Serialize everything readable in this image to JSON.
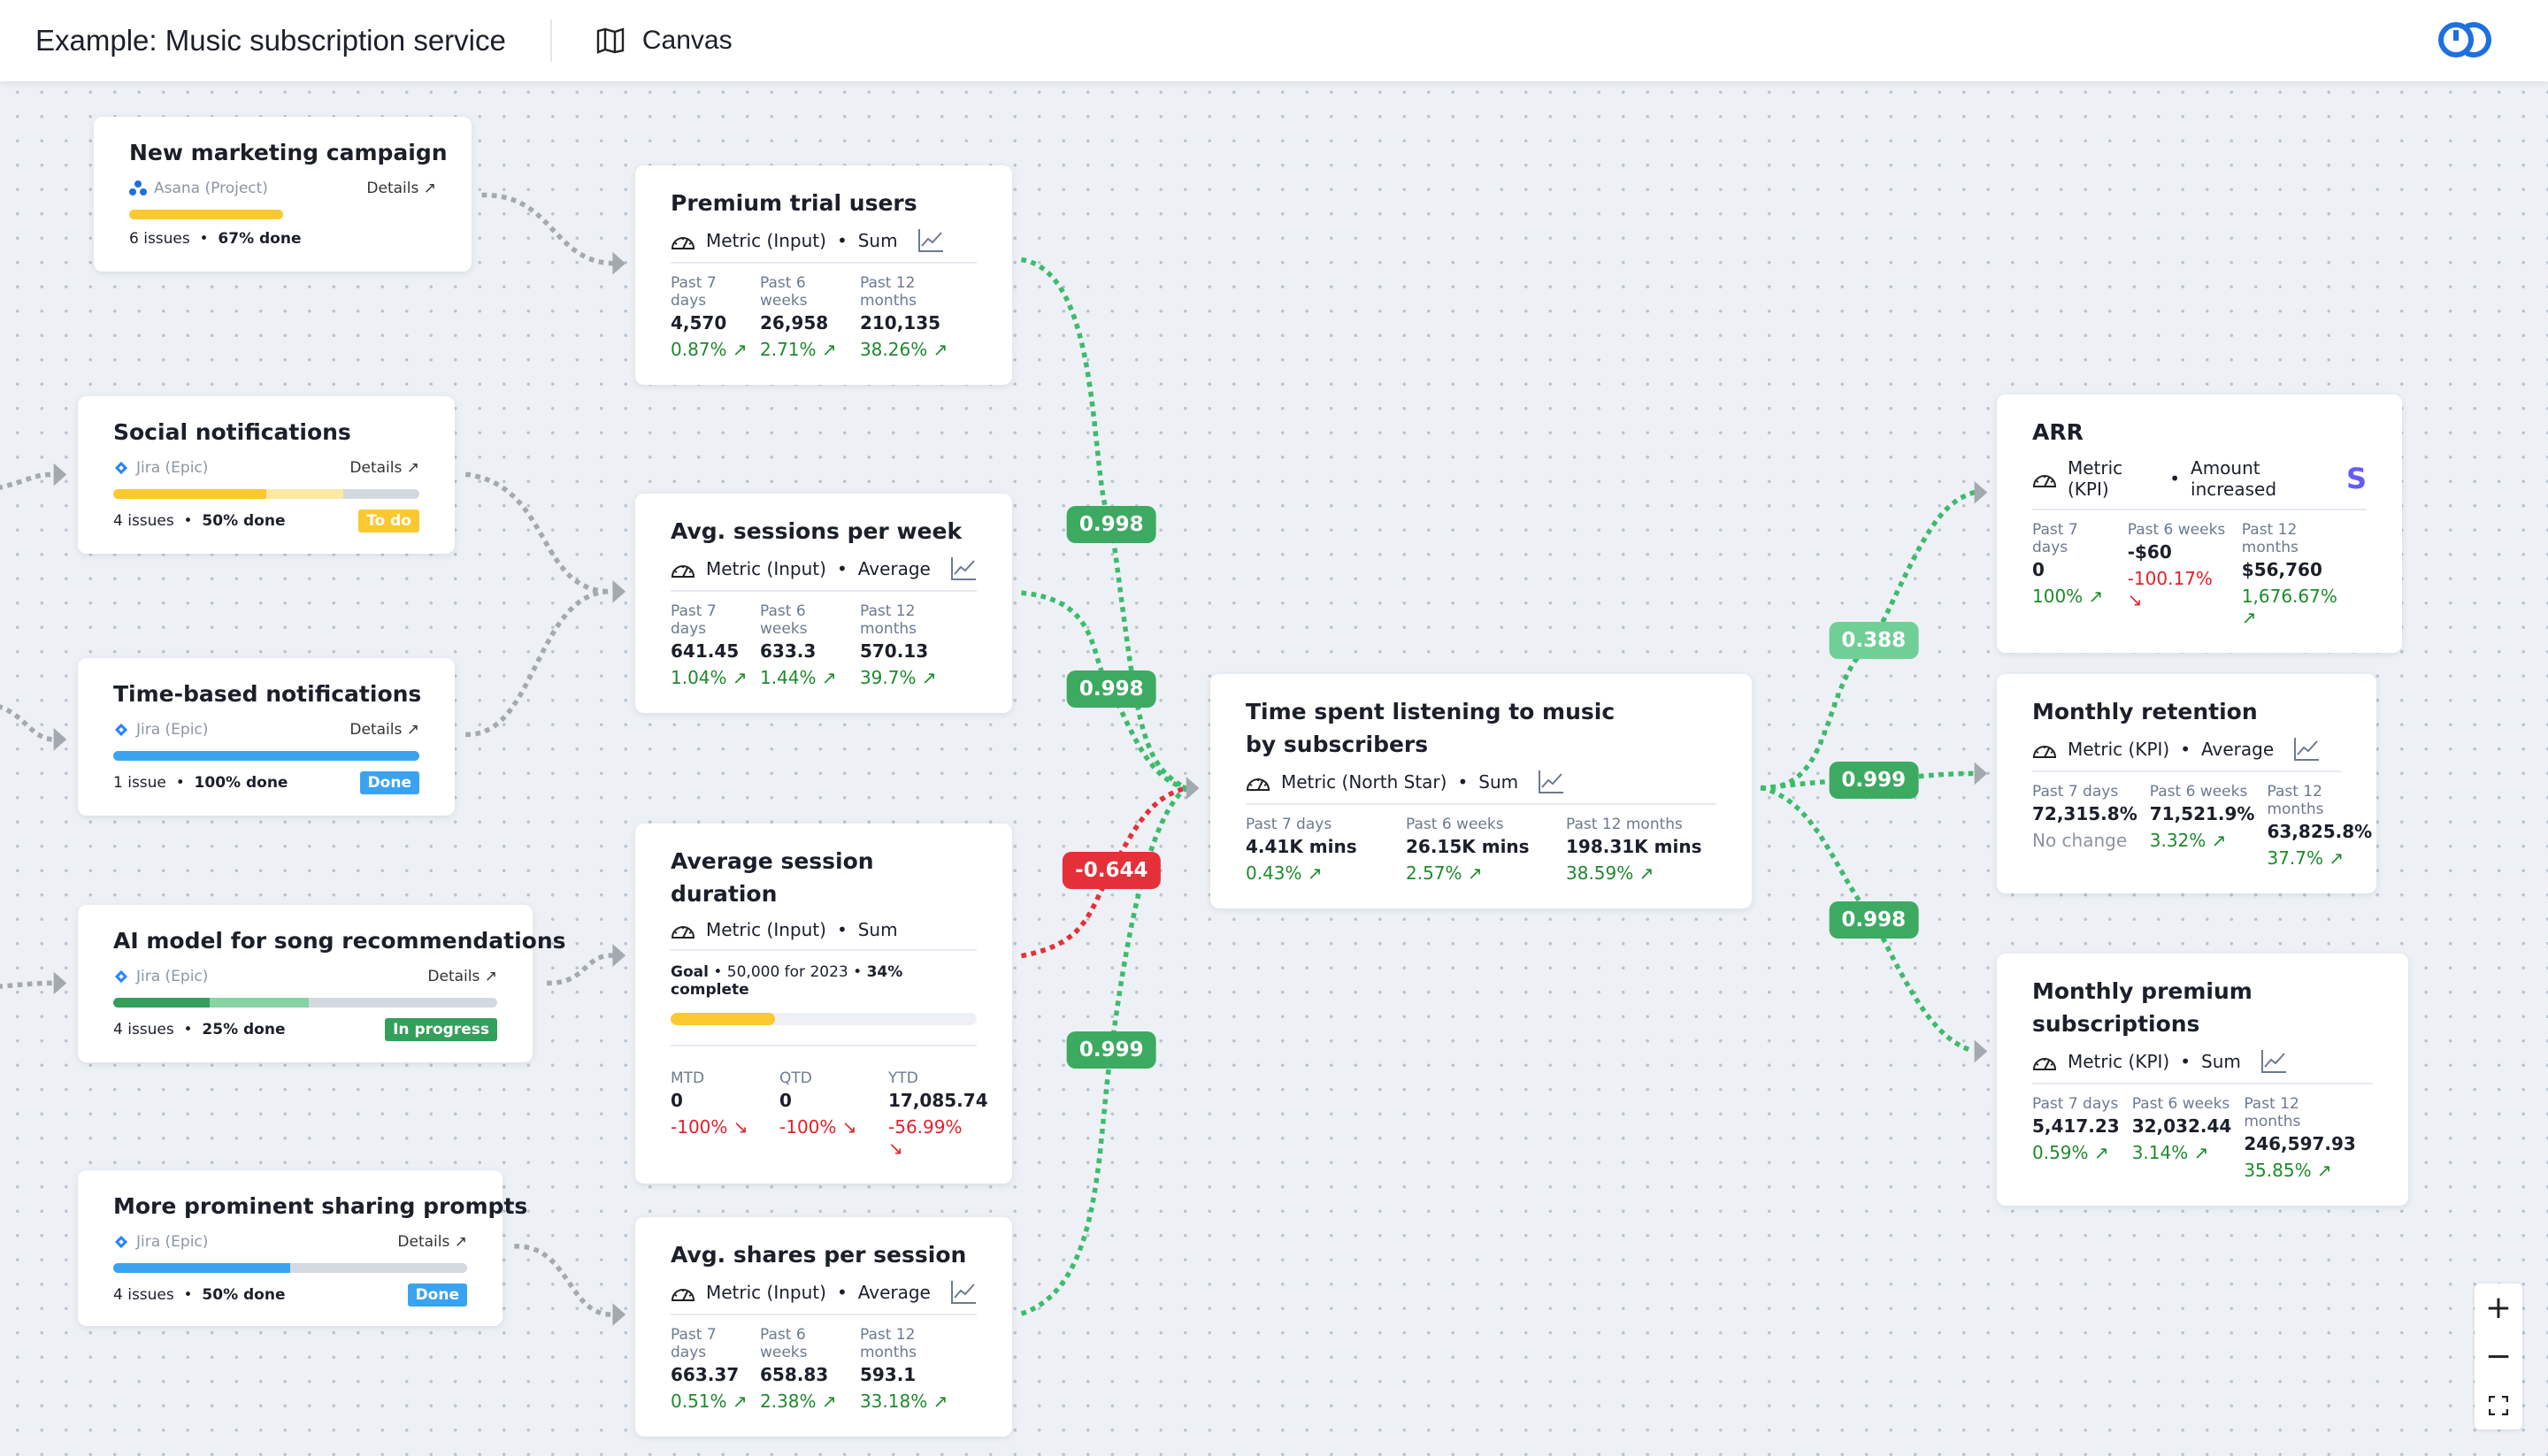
{
  "header": {
    "title": "Example: Music subscription service",
    "view_label": "Canvas",
    "view_icon": "map-icon",
    "logo": "app-logo"
  },
  "colors": {
    "up": "#1d8a2c",
    "down": "#e5202a",
    "edge_green": "#3dbb6c",
    "edge_red": "#e5303a",
    "edge_grey": "#a4a9b0",
    "badge_green": "#3daa62",
    "badge_green_light": "#6fcf97",
    "badge_red": "#e5303a"
  },
  "projects": [
    {
      "id": "p1",
      "title": "New marketing campaign",
      "source": "Asana (Project)",
      "source_icon": "asana-icon",
      "details": "Details ↗",
      "issues": "6 issues",
      "done": "67% done",
      "segments": [
        {
          "frac": 0.67,
          "color": "#fcc82f"
        }
      ],
      "bar_frac": 0.5,
      "status": null
    },
    {
      "id": "p2",
      "title": "Social notifications",
      "source": "Jira (Epic)",
      "source_icon": "jira-icon",
      "details": "Details ↗",
      "issues": "4 issues",
      "done": "50% done",
      "segments": [
        {
          "frac": 0.5,
          "color": "#fcc82f"
        },
        {
          "frac": 0.25,
          "color": "#fde8a4"
        }
      ],
      "status": {
        "label": "To do",
        "color": "#fcc82f"
      }
    },
    {
      "id": "p3",
      "title": "Time-based notifications",
      "source": "Jira (Epic)",
      "source_icon": "jira-icon",
      "details": "Details ↗",
      "issues": "1 issue",
      "done": "100% done",
      "segments": [
        {
          "frac": 1,
          "color": "#3aa3f0"
        }
      ],
      "status": {
        "label": "Done",
        "color": "#3aa3f0"
      }
    },
    {
      "id": "p4",
      "title": "AI model for song recommendations",
      "source": "Jira (Epic)",
      "source_icon": "jira-icon",
      "details": "Details ↗",
      "issues": "4 issues",
      "done": "25% done",
      "segments": [
        {
          "frac": 0.25,
          "color": "#32a05a"
        },
        {
          "frac": 0.26,
          "color": "#86d3a3"
        }
      ],
      "status": {
        "label": "In progress",
        "color": "#32a05a"
      }
    },
    {
      "id": "p5",
      "title": "More prominent sharing prompts",
      "source": "Jira (Epic)",
      "source_icon": "jira-icon",
      "details": "Details ↗",
      "issues": "4 issues",
      "done": "50% done",
      "segments": [
        {
          "frac": 0.5,
          "color": "#3aa3f0"
        }
      ],
      "status": {
        "label": "Done",
        "color": "#3aa3f0"
      }
    }
  ],
  "metrics": [
    {
      "id": "m1",
      "title": "Premium trial users",
      "type": "Metric (Input)",
      "agg": "Sum",
      "chart_icon": true,
      "cols": [
        {
          "label": "Past 7 days",
          "value": "4,570",
          "change": "0.87% ↗",
          "dir": "up"
        },
        {
          "label": "Past 6 weeks",
          "value": "26,958",
          "change": "2.71% ↗",
          "dir": "up"
        },
        {
          "label": "Past 12 months",
          "value": "210,135",
          "change": "38.26% ↗",
          "dir": "up"
        }
      ]
    },
    {
      "id": "m2",
      "title": "Avg. sessions per week",
      "type": "Metric (Input)",
      "agg": "Average",
      "chart_icon": true,
      "cols": [
        {
          "label": "Past 7 days",
          "value": "641.45",
          "change": "1.04% ↗",
          "dir": "up"
        },
        {
          "label": "Past 6 weeks",
          "value": "633.3",
          "change": "1.44% ↗",
          "dir": "up"
        },
        {
          "label": "Past 12 months",
          "value": "570.13",
          "change": "39.7% ↗",
          "dir": "up"
        }
      ]
    },
    {
      "id": "m3",
      "title": "Average session duration",
      "type": "Metric (Input)",
      "agg": "Sum",
      "chart_icon": false,
      "goal": {
        "label": "Goal",
        "target": "50,000 for 2023",
        "complete": "34% complete",
        "progress": 0.34
      },
      "cols": [
        {
          "label": "MTD",
          "value": "0",
          "change": "-100% ↘",
          "dir": "down"
        },
        {
          "label": "QTD",
          "value": "0",
          "change": "-100% ↘",
          "dir": "down"
        },
        {
          "label": "YTD",
          "value": "17,085.74",
          "change": "-56.99% ↘",
          "dir": "down"
        }
      ]
    },
    {
      "id": "m4",
      "title": "Avg. shares per session",
      "type": "Metric (Input)",
      "agg": "Average",
      "chart_icon": true,
      "cols": [
        {
          "label": "Past 7 days",
          "value": "663.37",
          "change": "0.51% ↗",
          "dir": "up"
        },
        {
          "label": "Past 6 weeks",
          "value": "658.83",
          "change": "2.38% ↗",
          "dir": "up"
        },
        {
          "label": "Past 12 months",
          "value": "593.1",
          "change": "33.18% ↗",
          "dir": "up"
        }
      ]
    },
    {
      "id": "m5",
      "title": "Time spent listening to music by subscribers",
      "type": "Metric (North Star)",
      "agg": "Sum",
      "chart_icon": true,
      "cols": [
        {
          "label": "Past 7 days",
          "value": "4.41K mins",
          "change": "0.43% ↗",
          "dir": "up"
        },
        {
          "label": "Past 6 weeks",
          "value": "26.15K mins",
          "change": "2.57% ↗",
          "dir": "up"
        },
        {
          "label": "Past 12 months",
          "value": "198.31K mins",
          "change": "38.59% ↗",
          "dir": "up"
        }
      ]
    },
    {
      "id": "m6",
      "title": "ARR",
      "type": "Metric (KPI)",
      "agg": "Amount increased",
      "chart_icon": false,
      "stripe_icon": true,
      "cols": [
        {
          "label": "Past 7 days",
          "value": "0",
          "change": "100% ↗",
          "dir": "up"
        },
        {
          "label": "Past 6 weeks",
          "value": "-$60",
          "change": "-100.17% ↘",
          "dir": "down"
        },
        {
          "label": "Past 12 months",
          "value": "$56,760",
          "change": "1,676.67% ↗",
          "dir": "up"
        }
      ]
    },
    {
      "id": "m7",
      "title": "Monthly retention",
      "type": "Metric (KPI)",
      "agg": "Average",
      "chart_icon": true,
      "cols": [
        {
          "label": "Past 7 days",
          "value": "72,315.8%",
          "change": "No change",
          "dir": "none"
        },
        {
          "label": "Past 6 weeks",
          "value": "71,521.9%",
          "change": "3.32% ↗",
          "dir": "up"
        },
        {
          "label": "Past 12 months",
          "value": "63,825.8%",
          "change": "37.7% ↗",
          "dir": "up"
        }
      ]
    },
    {
      "id": "m8",
      "title": "Monthly premium subscriptions",
      "type": "Metric (KPI)",
      "agg": "Sum",
      "chart_icon": true,
      "cols": [
        {
          "label": "Past 7 days",
          "value": "5,417.23",
          "change": "0.59% ↗",
          "dir": "up"
        },
        {
          "label": "Past 6 weeks",
          "value": "32,032.44",
          "change": "3.14% ↗",
          "dir": "up"
        },
        {
          "label": "Past 12 months",
          "value": "246,597.93",
          "change": "35.85% ↗",
          "dir": "up"
        }
      ]
    }
  ],
  "correlations": [
    {
      "value": "0.998",
      "tone": "green"
    },
    {
      "value": "0.998",
      "tone": "green"
    },
    {
      "value": "-0.644",
      "tone": "red"
    },
    {
      "value": "0.999",
      "tone": "green"
    },
    {
      "value": "0.388",
      "tone": "light"
    },
    {
      "value": "0.999",
      "tone": "green"
    },
    {
      "value": "0.998",
      "tone": "green"
    }
  ],
  "zoom_controls": {
    "zoom_in": "+",
    "zoom_out": "−",
    "fit_icon": "fit-screen-icon"
  }
}
